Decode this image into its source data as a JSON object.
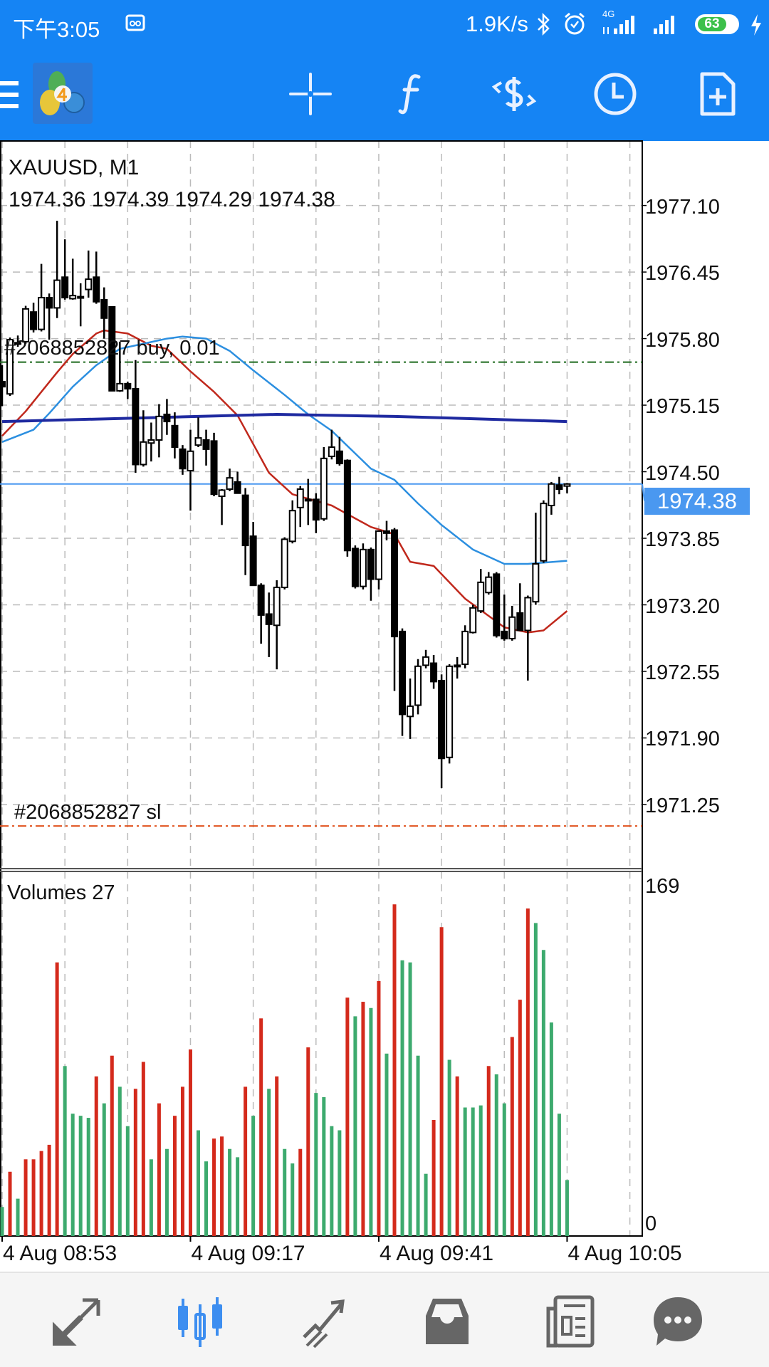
{
  "status_bar": {
    "time": "下午3:05",
    "net_speed": "1.9K/s",
    "network": "4G",
    "battery": "63"
  },
  "chart": {
    "symbol_timeframe": "XAUUSD, M1",
    "ohlc_text": "1974.36 1974.39 1974.29 1974.38",
    "price_labels": [
      "1977.10",
      "1976.45",
      "1975.80",
      "1975.15",
      "1974.50",
      "1973.85",
      "1973.20",
      "1972.55",
      "1971.90",
      "1971.25"
    ],
    "current_price": "1974.38",
    "buy_order_label": "#2068852827 buy, 0.01",
    "sl_label": "#2068852827 sl",
    "volume_title": "Volumes 27",
    "volume_max_label": "169",
    "volume_min_label": "0",
    "time_labels": [
      "4 Aug 08:53",
      "4 Aug 09:17",
      "4 Aug 09:41",
      "4 Aug 10:05"
    ]
  },
  "colors": {
    "accent": "#1584f4",
    "bull_volume": "#3daa6e",
    "bear_volume": "#d42a1c",
    "ma_fast": "#c0281c",
    "ma_mid": "#2c8fe0",
    "ma_slow": "#1f2aa0",
    "buy_line": "#1c6a1c",
    "sl_line": "#e0501c",
    "current_price": "#4a98f0"
  },
  "chart_data": {
    "type": "candlestick",
    "title": "XAUUSD, M1",
    "price_ylim": [
      1970.61,
      1977.73
    ],
    "volume_ylim": [
      0,
      169
    ],
    "time_tick_indices": [
      0,
      24,
      48,
      72
    ],
    "grid": true,
    "candles": [
      [
        1975.38,
        1975.54,
        1975.14,
        1975.33
      ],
      [
        1975.26,
        1975.81,
        1975.24,
        1975.79
      ],
      [
        1975.76,
        1975.83,
        1975.72,
        1975.75
      ],
      [
        1975.77,
        1976.12,
        1975.75,
        1976.09
      ],
      [
        1976.06,
        1976.15,
        1975.86,
        1975.89
      ],
      [
        1975.89,
        1976.53,
        1975.87,
        1976.2
      ],
      [
        1976.2,
        1976.24,
        1975.79,
        1976.1
      ],
      [
        1976.1,
        1976.95,
        1976.0,
        1976.37
      ],
      [
        1976.4,
        1976.77,
        1976.18,
        1976.2
      ],
      [
        1976.19,
        1976.58,
        1976.18,
        1976.22
      ],
      [
        1976.21,
        1976.34,
        1975.92,
        1976.2
      ],
      [
        1976.28,
        1976.66,
        1976.2,
        1976.38
      ],
      [
        1976.4,
        1976.65,
        1976.14,
        1976.16
      ],
      [
        1976.18,
        1976.3,
        1975.8,
        1976.0
      ],
      [
        1976.11,
        1976.11,
        1975.29,
        1975.29
      ],
      [
        1975.29,
        1975.77,
        1975.28,
        1975.36
      ],
      [
        1975.36,
        1975.38,
        1975.21,
        1975.31
      ],
      [
        1975.31,
        1975.59,
        1974.49,
        1974.57
      ],
      [
        1974.57,
        1975.1,
        1974.55,
        1974.79
      ],
      [
        1974.78,
        1974.98,
        1974.6,
        1974.81
      ],
      [
        1974.81,
        1975.16,
        1974.64,
        1975.04
      ],
      [
        1975.06,
        1975.21,
        1974.86,
        1974.99
      ],
      [
        1974.95,
        1975.08,
        1974.63,
        1974.74
      ],
      [
        1974.72,
        1974.76,
        1974.47,
        1974.53
      ],
      [
        1974.51,
        1974.91,
        1974.12,
        1974.7
      ],
      [
        1974.76,
        1975.03,
        1974.74,
        1974.83
      ],
      [
        1974.81,
        1974.91,
        1974.56,
        1974.72
      ],
      [
        1974.8,
        1974.88,
        1974.26,
        1974.28
      ],
      [
        1974.26,
        1974.33,
        1973.98,
        1974.32
      ],
      [
        1974.33,
        1974.53,
        1974.31,
        1974.44
      ],
      [
        1974.4,
        1974.5,
        1974.29,
        1974.29
      ],
      [
        1974.27,
        1974.34,
        1973.49,
        1973.78
      ],
      [
        1973.87,
        1974.01,
        1973.39,
        1973.39
      ],
      [
        1973.39,
        1973.41,
        1972.82,
        1973.1
      ],
      [
        1973.11,
        1973.32,
        1972.69,
        1973.01
      ],
      [
        1973.0,
        1973.44,
        1972.57,
        1973.37
      ],
      [
        1973.37,
        1973.86,
        1973.35,
        1973.84
      ],
      [
        1973.82,
        1974.22,
        1973.8,
        1974.12
      ],
      [
        1974.15,
        1974.36,
        1973.96,
        1974.33
      ],
      [
        1974.23,
        1974.43,
        1973.98,
        1974.22
      ],
      [
        1974.23,
        1974.29,
        1973.9,
        1974.03
      ],
      [
        1974.04,
        1974.74,
        1974.02,
        1974.63
      ],
      [
        1974.65,
        1974.91,
        1974.62,
        1974.74
      ],
      [
        1974.7,
        1974.84,
        1974.56,
        1974.58
      ],
      [
        1974.61,
        1974.62,
        1973.67,
        1973.73
      ],
      [
        1973.75,
        1973.78,
        1973.36,
        1973.38
      ],
      [
        1973.38,
        1973.8,
        1973.35,
        1973.74
      ],
      [
        1973.74,
        1973.76,
        1973.24,
        1973.45
      ],
      [
        1973.45,
        1973.92,
        1973.35,
        1973.92
      ],
      [
        1973.92,
        1974.02,
        1973.83,
        1973.9
      ],
      [
        1973.93,
        1973.95,
        1972.36,
        1972.89
      ],
      [
        1972.94,
        1972.97,
        1971.92,
        1972.13
      ],
      [
        1972.11,
        1972.48,
        1971.89,
        1972.21
      ],
      [
        1972.22,
        1972.67,
        1972.13,
        1972.6
      ],
      [
        1972.61,
        1972.76,
        1972.58,
        1972.69
      ],
      [
        1972.63,
        1972.71,
        1972.38,
        1972.45
      ],
      [
        1972.46,
        1972.52,
        1971.41,
        1971.7
      ],
      [
        1971.71,
        1972.62,
        1971.65,
        1972.6
      ],
      [
        1972.6,
        1972.69,
        1972.48,
        1972.61
      ],
      [
        1972.62,
        1973.0,
        1972.58,
        1972.94
      ],
      [
        1972.93,
        1973.2,
        1972.92,
        1973.17
      ],
      [
        1973.14,
        1973.55,
        1973.12,
        1973.42
      ],
      [
        1973.32,
        1973.52,
        1973.3,
        1973.47
      ],
      [
        1973.5,
        1973.52,
        1972.88,
        1972.9
      ],
      [
        1972.94,
        1973.3,
        1972.85,
        1972.87
      ],
      [
        1972.87,
        1973.19,
        1972.85,
        1973.08
      ],
      [
        1973.12,
        1973.41,
        1972.95,
        1972.95
      ],
      [
        1972.95,
        1973.29,
        1972.46,
        1973.27
      ],
      [
        1973.23,
        1974.1,
        1973.2,
        1973.6
      ],
      [
        1973.63,
        1974.22,
        1973.61,
        1974.19
      ],
      [
        1974.17,
        1974.4,
        1974.08,
        1974.38
      ],
      [
        1974.37,
        1974.45,
        1974.28,
        1974.33
      ],
      [
        1974.36,
        1974.39,
        1974.29,
        1974.38
      ]
    ],
    "volumes": [
      14,
      31,
      18,
      37,
      37,
      41,
      44,
      132,
      82,
      59,
      58,
      57,
      77,
      64,
      87,
      72,
      53,
      71,
      84,
      37,
      64,
      42,
      58,
      72,
      90,
      51,
      36,
      47,
      48,
      42,
      38,
      72,
      58,
      105,
      71,
      77,
      42,
      35,
      42,
      91,
      69,
      67,
      53,
      51,
      115,
      106,
      113,
      110,
      123,
      88,
      160,
      133,
      132,
      87,
      30,
      56,
      149,
      85,
      77,
      62,
      62,
      63,
      82,
      78,
      64,
      96,
      114,
      158,
      151,
      138,
      103,
      59,
      27
    ],
    "volume_up": [
      1,
      0,
      1,
      0,
      0,
      0,
      0,
      0,
      1,
      1,
      1,
      1,
      0,
      1,
      0,
      1,
      1,
      0,
      0,
      1,
      0,
      1,
      0,
      0,
      0,
      1,
      1,
      0,
      0,
      1,
      1,
      0,
      1,
      0,
      1,
      0,
      1,
      1,
      0,
      0,
      1,
      1,
      1,
      1,
      0,
      1,
      0,
      1,
      0,
      1,
      0,
      1,
      1,
      1,
      1,
      0,
      0,
      1,
      0,
      1,
      1,
      1,
      0,
      1,
      1,
      0,
      0,
      0,
      1,
      1,
      1,
      1,
      1
    ],
    "moving_averages": [
      {
        "name": "fast",
        "points": [
          [
            0,
            1974.85
          ],
          [
            3,
            1975.09
          ],
          [
            7,
            1975.47
          ],
          [
            9,
            1975.65
          ],
          [
            12,
            1975.85
          ],
          [
            13,
            1975.88
          ],
          [
            16,
            1975.85
          ],
          [
            19,
            1975.73
          ],
          [
            21,
            1975.7
          ],
          [
            24,
            1975.48
          ],
          [
            27,
            1975.28
          ],
          [
            30,
            1975.05
          ],
          [
            34,
            1974.49
          ],
          [
            37,
            1974.28
          ],
          [
            42,
            1974.17
          ],
          [
            47,
            1973.96
          ],
          [
            50,
            1973.89
          ],
          [
            52,
            1973.62
          ],
          [
            55,
            1973.58
          ],
          [
            59,
            1973.26
          ],
          [
            64,
            1972.98
          ],
          [
            67,
            1972.93
          ],
          [
            69,
            1972.95
          ],
          [
            72,
            1973.14
          ]
        ]
      },
      {
        "name": "mid",
        "points": [
          [
            0,
            1974.79
          ],
          [
            4,
            1974.91
          ],
          [
            6,
            1975.07
          ],
          [
            9,
            1975.33
          ],
          [
            12,
            1975.54
          ],
          [
            15,
            1975.7
          ],
          [
            18,
            1975.75
          ],
          [
            21,
            1975.8
          ],
          [
            23,
            1975.82
          ],
          [
            26,
            1975.8
          ],
          [
            29,
            1975.68
          ],
          [
            32,
            1975.49
          ],
          [
            36,
            1975.25
          ],
          [
            39,
            1975.06
          ],
          [
            42,
            1974.9
          ],
          [
            47,
            1974.53
          ],
          [
            50,
            1974.42
          ],
          [
            53,
            1974.19
          ],
          [
            56,
            1973.98
          ],
          [
            60,
            1973.74
          ],
          [
            64,
            1973.6
          ],
          [
            67,
            1973.6
          ],
          [
            72,
            1973.63
          ]
        ]
      },
      {
        "name": "slow",
        "points": [
          [
            0,
            1974.99
          ],
          [
            20,
            1975.03
          ],
          [
            35,
            1975.06
          ],
          [
            50,
            1975.04
          ],
          [
            72,
            1974.99
          ]
        ]
      }
    ],
    "levels": {
      "current": 1974.38,
      "buy_order": 1975.57,
      "stop_loss": 1971.04
    }
  }
}
